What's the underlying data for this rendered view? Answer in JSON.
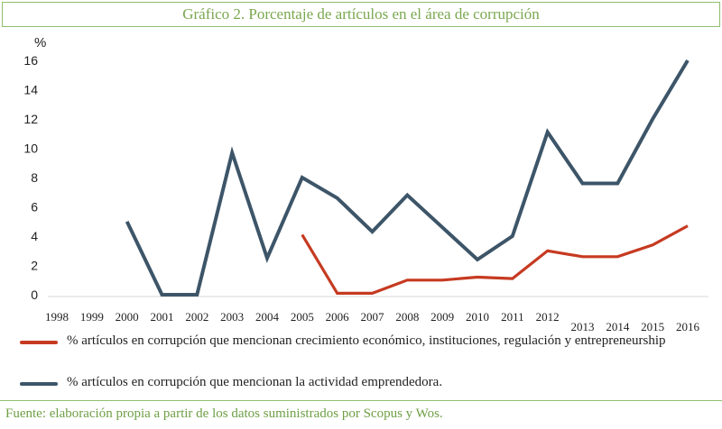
{
  "title": "Gráfico 2. Porcentaje de artículos en el área de corrupción",
  "source": "Fuente: elaboración propia a partir de los datos suministrados por Scopus y Wos.",
  "colors": {
    "accent": "#8fbf6e",
    "series_blue": "#3d5568",
    "series_red": "#c63a21",
    "source_text": "#6e9f45"
  },
  "chart_data": {
    "type": "line",
    "ylabel": "%",
    "xlabel": "",
    "ylim": [
      0,
      16
    ],
    "yticks": [
      0,
      2,
      4,
      6,
      8,
      10,
      12,
      14,
      16
    ],
    "grid": false,
    "legend_position": "bottom",
    "categories": [
      "1998",
      "1999",
      "2000",
      "2001",
      "2002",
      "2003",
      "2004",
      "2005",
      "2006",
      "2007",
      "2008",
      "2009",
      "2010",
      "2011",
      "2012",
      "2013",
      "2014",
      "2015",
      "2016"
    ],
    "series": [
      {
        "name": "% artículos en corrupción que mencionan crecimiento económico, instituciones, regulación y entrepreneurship",
        "color": "#c63a21",
        "values": [
          null,
          null,
          null,
          null,
          null,
          null,
          null,
          4.1,
          0.1,
          0.1,
          1.0,
          1.0,
          1.2,
          1.1,
          3.0,
          2.6,
          2.6,
          3.4,
          4.7
        ]
      },
      {
        "name": "% artículos en corrupción que mencionan la actividad emprendedora.",
        "color": "#3d5568",
        "values": [
          null,
          null,
          5.0,
          0.0,
          0.0,
          9.7,
          2.5,
          8.0,
          6.6,
          4.3,
          6.8,
          4.6,
          2.4,
          4.0,
          11.1,
          7.6,
          7.6,
          12.0,
          16.0
        ]
      }
    ]
  }
}
